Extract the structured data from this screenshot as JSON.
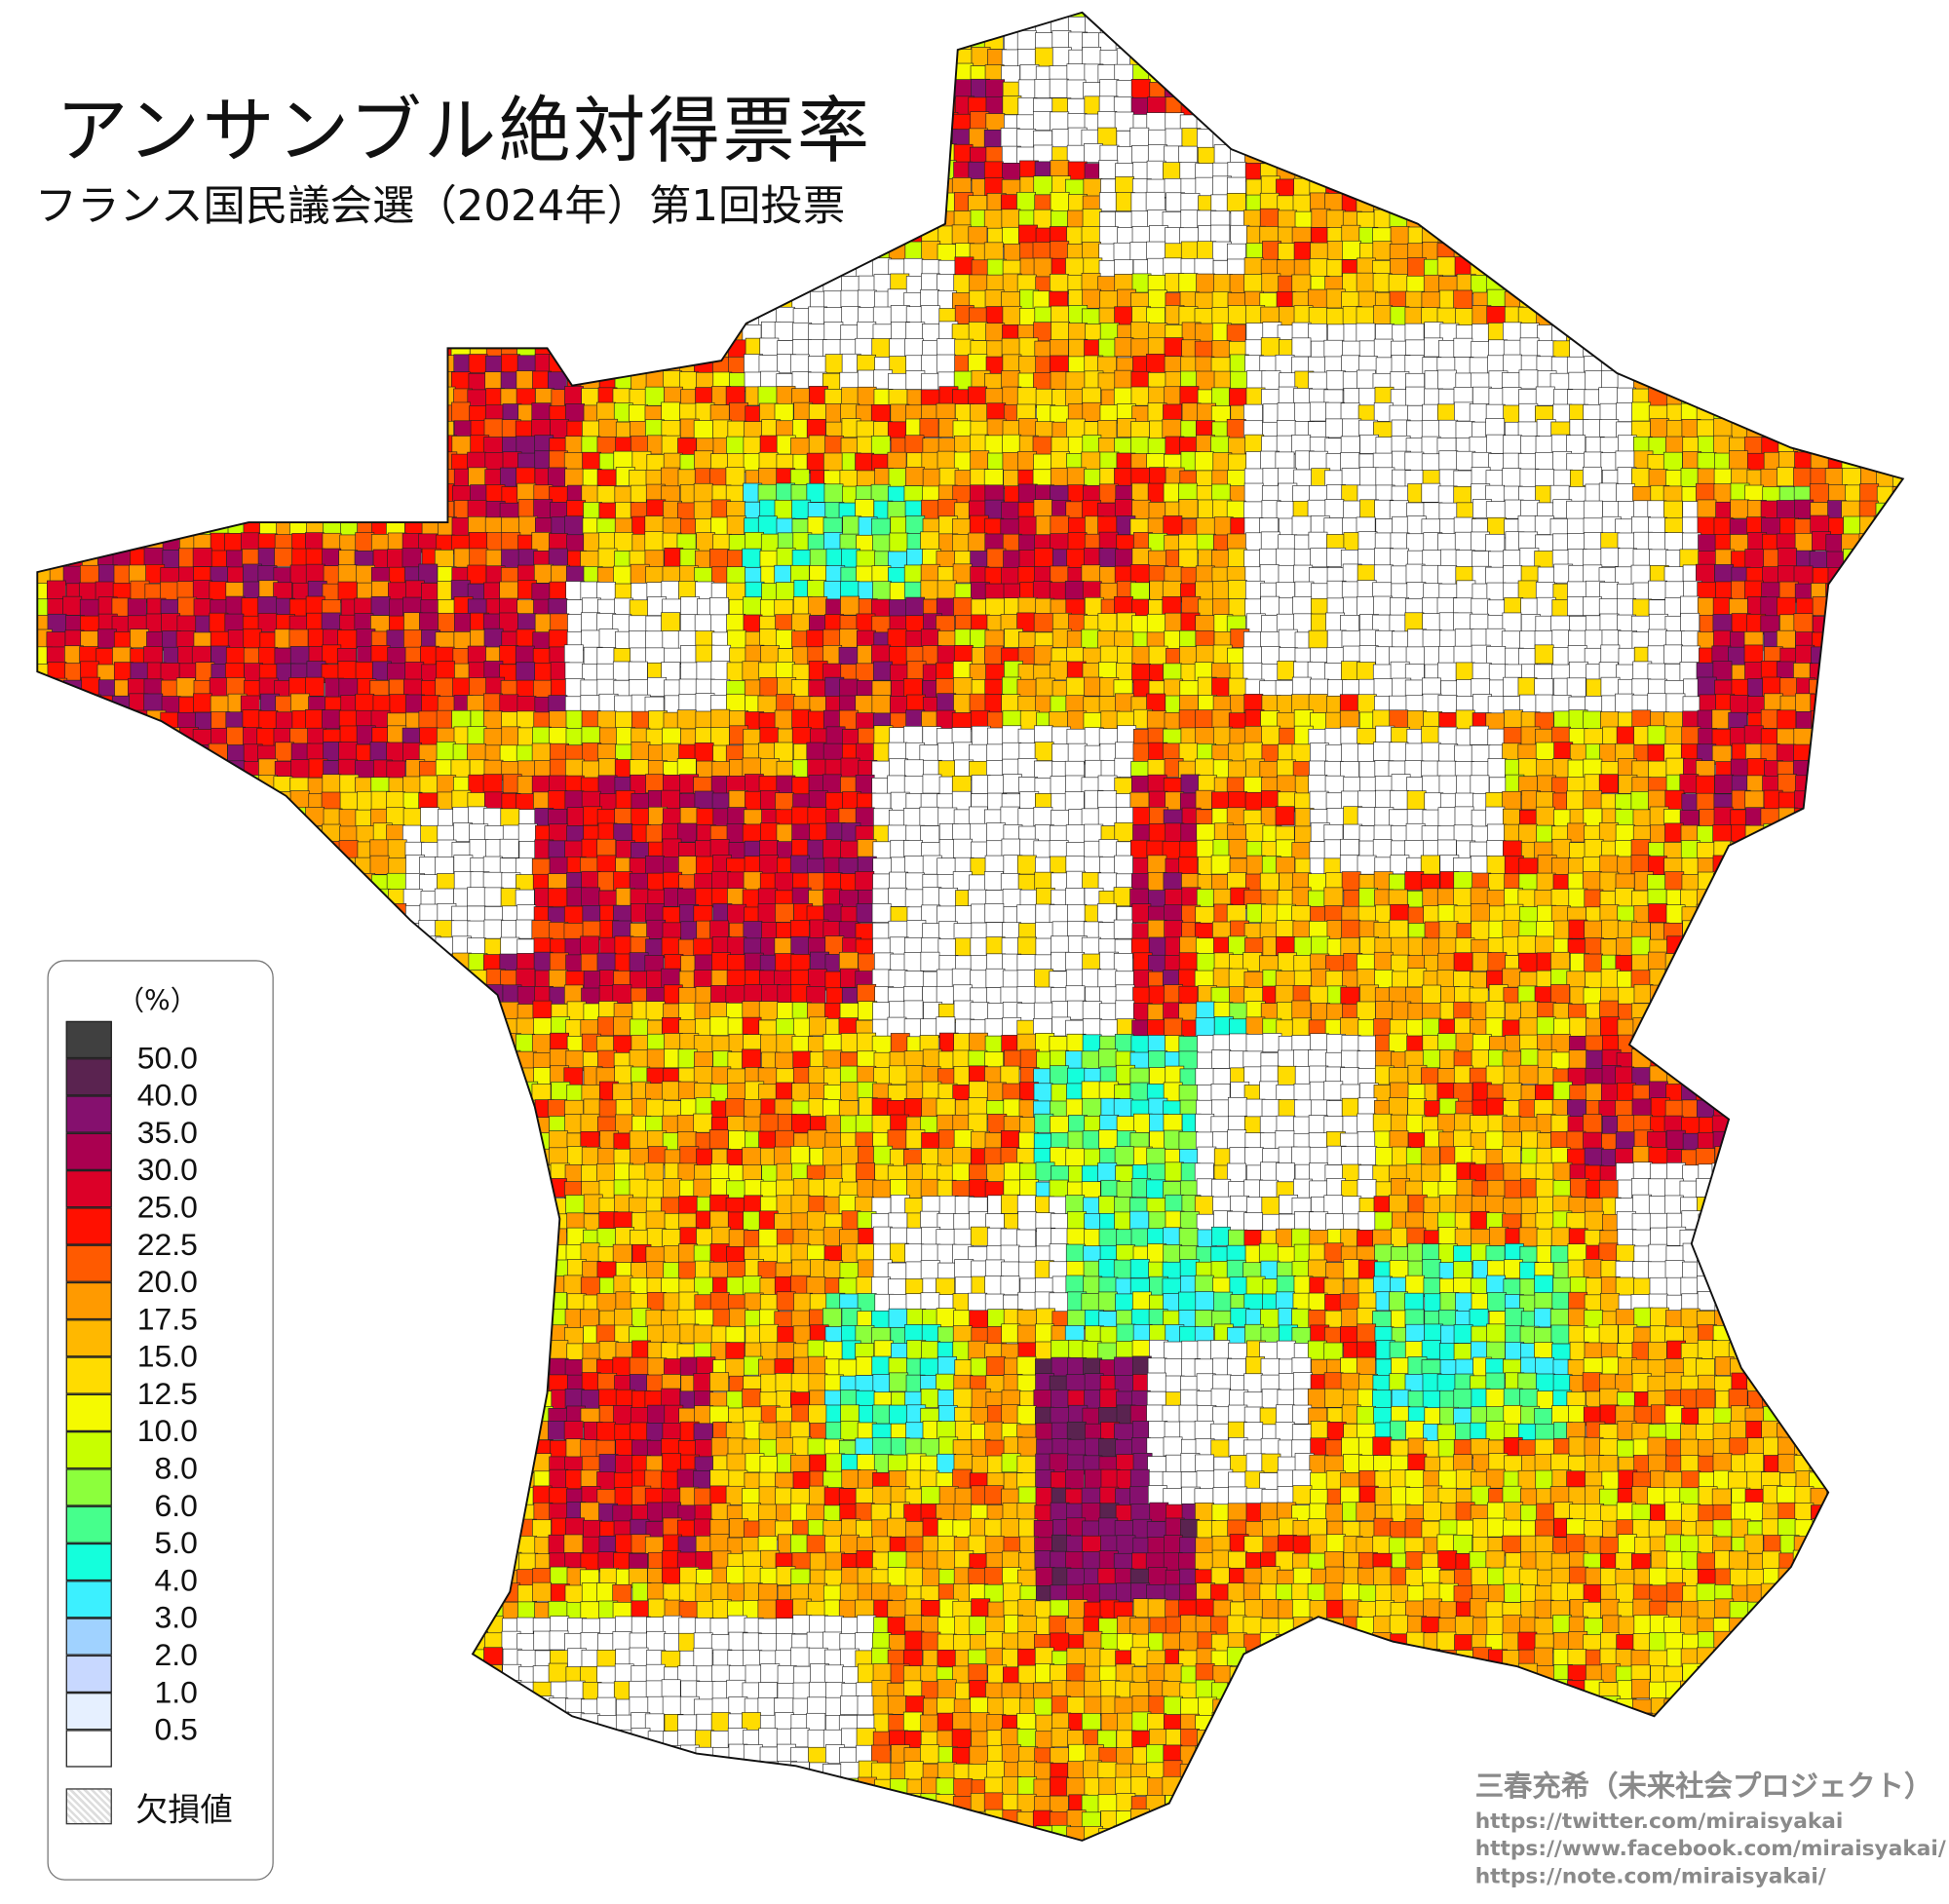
{
  "title": "アンサンブル絶対得票率",
  "subtitle": "フランス国民議会選（2024年）第1回投票",
  "legend": {
    "unit": "（%）",
    "labels": [
      "50.0",
      "40.0",
      "35.0",
      "30.0",
      "25.0",
      "22.5",
      "20.0",
      "17.5",
      "15.0",
      "12.5",
      "10.0",
      "8.0",
      "6.0",
      "5.0",
      "4.0",
      "3.0",
      "2.0",
      "1.0",
      "0.5"
    ],
    "colors": [
      "#404040",
      "#5a2350",
      "#85106e",
      "#aa0050",
      "#dc0028",
      "#ff1000",
      "#ff5a00",
      "#ff9a00",
      "#ffb800",
      "#ffdc00",
      "#f5fa00",
      "#c8ff00",
      "#8cff3c",
      "#46ff8c",
      "#14ffdc",
      "#3cf0ff",
      "#a0d2ff",
      "#c8d8ff",
      "#e6f0ff",
      "#ffffff"
    ],
    "missing_label": "欠損値"
  },
  "credit": {
    "name": "三春充希（未来社会プロジェクト）",
    "urls": [
      "https://twitter.com/miraisyakai",
      "https://www.facebook.com/miraisyakai/",
      "https://note.com/miraisyakai/"
    ]
  }
}
